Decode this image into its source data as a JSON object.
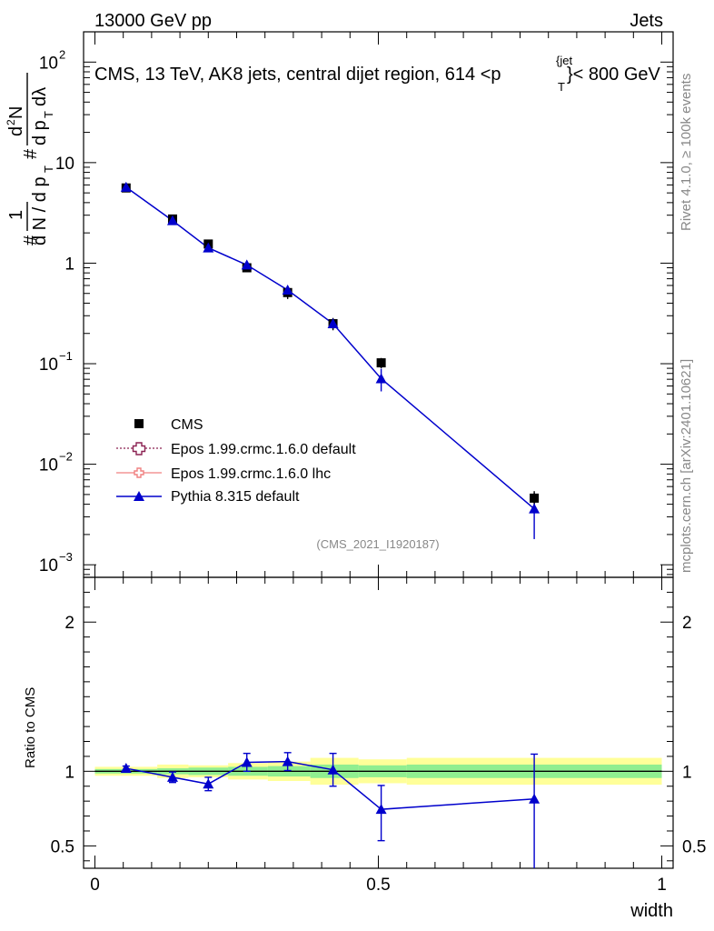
{
  "header": {
    "left_label": "13000 GeV pp",
    "right_label": "Jets",
    "plot_title": "CMS, 13 TeV, AK8 jets, central dijet region, 614 <p",
    "title_sub": "T",
    "title_sup": "{jet",
    "title_suffix": "}< 800 GeV"
  },
  "side_labels": {
    "rivet": "Rivet 4.1.0, ≥ 100k events",
    "mcplots": "mcplots.cern.ch [arXiv:2401.10621]"
  },
  "watermark": "(CMS_2021_I1920187)",
  "colors": {
    "data": "#000000",
    "pythia": "#0000cc",
    "epos_default": "#8b2252",
    "epos_lhc": "#f08080",
    "band_inner": "#90ee90",
    "band_outer": "#ffff99"
  },
  "chart_data": [
    {
      "type": "scatter",
      "scale": "log",
      "ylabel": "# 1/dN/dp_T # d²N/dp_T dλ",
      "y_tick_labels": [
        "10^-3",
        "10^-2",
        "10^-1",
        "1",
        "10",
        "10^2"
      ],
      "xlim": [
        -0.02,
        1.02
      ],
      "ylim": [
        0.00075,
        200
      ],
      "legend_position": "lower-left",
      "series": [
        {
          "name": "CMS",
          "x": [
            0.055,
            0.137,
            0.2,
            0.268,
            0.34,
            0.42,
            0.505,
            0.775
          ],
          "y": [
            5.6,
            2.75,
            1.55,
            0.9,
            0.51,
            0.25,
            0.102,
            0.0046
          ],
          "yerr_lo": [
            0.25,
            0.15,
            0.1,
            0.08,
            0.07,
            0.035,
            0.012,
            0.0008
          ],
          "yerr_hi": [
            0.25,
            0.15,
            0.1,
            0.08,
            0.07,
            0.035,
            0.012,
            0.0008
          ]
        },
        {
          "name": "Epos 1.99.crmc.1.6.0 default",
          "x": [],
          "y": []
        },
        {
          "name": "Epos 1.99.crmc.1.6.0 lhc",
          "x": [],
          "y": []
        },
        {
          "name": "Pythia 8.315 default",
          "x": [
            0.055,
            0.137,
            0.2,
            0.268,
            0.34,
            0.42,
            0.505,
            0.775
          ],
          "y": [
            5.7,
            2.65,
            1.42,
            0.96,
            0.54,
            0.25,
            0.071,
            0.0036
          ],
          "yerr_lo": [
            0.2,
            0.12,
            0.08,
            0.08,
            0.06,
            0.03,
            0.018,
            0.0018
          ],
          "yerr_hi": [
            0.2,
            0.12,
            0.08,
            0.08,
            0.06,
            0.03,
            0.018,
            0.0016
          ]
        }
      ]
    },
    {
      "type": "line",
      "scale": "linear",
      "ylabel": "Ratio to CMS",
      "xlabel": "width",
      "x_tick_labels": [
        "0",
        "0.5",
        "1"
      ],
      "x_ticks": [
        0,
        0.5,
        1
      ],
      "y_tick_labels": [
        "0.5",
        "1",
        "2"
      ],
      "y_ticks": [
        0.5,
        1,
        2
      ],
      "xlim": [
        -0.02,
        1.02
      ],
      "ylim": [
        0.35,
        2.3
      ],
      "bands": [
        {
          "x0": 0.0,
          "x1": 0.11,
          "inner": 0.015,
          "outer": 0.03
        },
        {
          "x0": 0.11,
          "x1": 0.165,
          "inner": 0.02,
          "outer": 0.045
        },
        {
          "x0": 0.165,
          "x1": 0.235,
          "inner": 0.025,
          "outer": 0.04
        },
        {
          "x0": 0.235,
          "x1": 0.305,
          "inner": 0.03,
          "outer": 0.055
        },
        {
          "x0": 0.305,
          "x1": 0.38,
          "inner": 0.035,
          "outer": 0.065
        },
        {
          "x0": 0.38,
          "x1": 0.465,
          "inner": 0.045,
          "outer": 0.09
        },
        {
          "x0": 0.465,
          "x1": 0.55,
          "inner": 0.04,
          "outer": 0.08
        },
        {
          "x0": 0.55,
          "x1": 1.0,
          "inner": 0.045,
          "outer": 0.09
        }
      ],
      "series": [
        {
          "name": "Pythia 8.315 default",
          "x": [
            0.055,
            0.137,
            0.2,
            0.268,
            0.34,
            0.42,
            0.505,
            0.775
          ],
          "y": [
            1.02,
            0.96,
            0.915,
            1.06,
            1.065,
            1.01,
            0.745,
            0.815
          ],
          "yerr_lo": [
            0.015,
            0.035,
            0.045,
            0.06,
            0.06,
            0.11,
            0.21,
            0.48
          ],
          "yerr_hi": [
            0.015,
            0.035,
            0.045,
            0.06,
            0.06,
            0.11,
            0.16,
            0.3
          ]
        }
      ]
    }
  ]
}
